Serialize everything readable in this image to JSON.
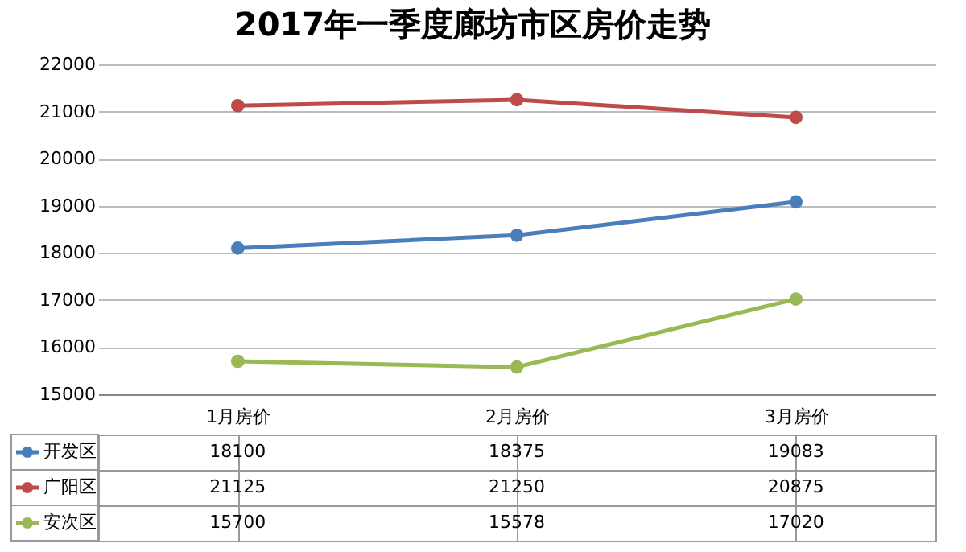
{
  "chart_data": {
    "type": "line",
    "title": "2017年一季度廊坊市区房价走势",
    "categories": [
      "1月房价",
      "2月房价",
      "3月房价"
    ],
    "series": [
      {
        "name": "开发区",
        "color": "#4a7ebb",
        "values": [
          18100,
          18375,
          19083
        ]
      },
      {
        "name": "广阳区",
        "color": "#be4b48",
        "values": [
          21125,
          21250,
          20875
        ]
      },
      {
        "name": "安次区",
        "color": "#98b954",
        "values": [
          15700,
          15578,
          17020
        ]
      }
    ],
    "ylim": [
      15000,
      22000
    ],
    "yticks": [
      15000,
      16000,
      17000,
      18000,
      19000,
      20000,
      21000,
      22000
    ],
    "grid": "y",
    "marker": "circle",
    "line_style": "solid",
    "legend": "bottom left",
    "data_labels": true
  }
}
